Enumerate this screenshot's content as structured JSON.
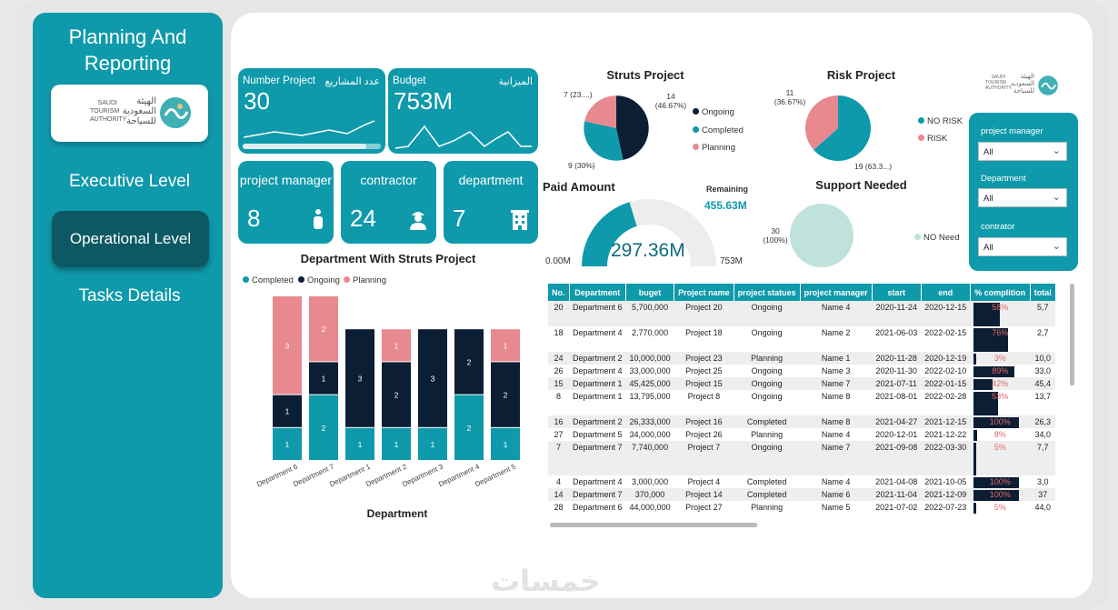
{
  "sidebar": {
    "title_line1": "Planning And",
    "title_line2": "Reporting",
    "logo": {
      "text_en_1": "SAUDI",
      "text_en_2": "TOURISM",
      "text_en_3": "AUTHORITY",
      "text_ar_1": "الهيئة",
      "text_ar_2": "السعودية",
      "text_ar_3": "للسياحة"
    },
    "nav": [
      {
        "label": "Executive Level"
      },
      {
        "label": "Operational Level"
      },
      {
        "label": "Tasks Details"
      }
    ]
  },
  "kpis": {
    "projects": {
      "label": "Number Project",
      "label_ar": "عدد المشاريع",
      "value": "30"
    },
    "budget": {
      "label": "Budget",
      "label_ar": "الميزانية",
      "value": "753M"
    },
    "manager": {
      "label": "project manager",
      "value": "8"
    },
    "contractor": {
      "label": "contractor",
      "value": "24"
    },
    "department": {
      "label": "department",
      "value": "7"
    }
  },
  "struts_pie": {
    "title": "Struts Project",
    "labels": {
      "ongoing": "14\n(46.67%)",
      "completed": "9 (30%)",
      "planning": "7 (23....)"
    },
    "legend": [
      "Ongoing",
      "Completed",
      "Planning"
    ]
  },
  "risk_pie": {
    "title": "Risk Project",
    "labels": {
      "norisk": "19 (63.3...)",
      "risk": "11\n(36.67%)"
    },
    "legend": [
      "NO RISK",
      "RISK"
    ]
  },
  "paid": {
    "title": "Paid Amount",
    "value": "297.36M",
    "remaining_label": "Remaining",
    "remaining_value": "455.63M",
    "min": "0.00M",
    "max": "753M"
  },
  "support": {
    "title": "Support Needed",
    "label": "30\n(100%)",
    "legend": "NO Need"
  },
  "filters": [
    {
      "label": "project manager",
      "value": "All"
    },
    {
      "label": "Department",
      "value": "All"
    },
    {
      "label": "contrator",
      "value": "All"
    }
  ],
  "colors": {
    "teal": "#0f9aab",
    "navy": "#0c1e33",
    "pink": "#e8898f",
    "mint": "#bfe3dc",
    "dark_teal": "#0c5964"
  },
  "chart_data": {
    "type": "bar",
    "title": "Department With Struts Project",
    "xlabel": "Department",
    "ylabel": "",
    "categories": [
      "Department 6",
      "Department 7",
      "Department 1",
      "Department 2",
      "Department 3",
      "Department 4",
      "Department 5"
    ],
    "series": [
      {
        "name": "Completed",
        "color": "#0f9aab",
        "values": [
          1,
          2,
          1,
          1,
          1,
          2,
          1
        ]
      },
      {
        "name": "Ongoing",
        "color": "#0c1e33",
        "values": [
          1,
          1,
          3,
          2,
          3,
          2,
          2
        ]
      },
      {
        "name": "Planning",
        "color": "#e8898f",
        "values": [
          3,
          2,
          0,
          1,
          0,
          0,
          1
        ]
      }
    ],
    "ylim": [
      0,
      5
    ]
  },
  "table": {
    "columns": [
      "No.",
      "Department",
      "buget",
      "Project name",
      "project statues",
      "project manager",
      "start",
      "end",
      "% complition",
      "total"
    ],
    "rows": [
      [
        "20",
        "Department 6",
        "5,700,000",
        "Project 20",
        "Ongoing",
        "Name 4",
        "2020-11-24",
        "2020-12-15",
        "58%",
        "5,7"
      ],
      [
        "18",
        "Department 4",
        "2,770,000",
        "Project 18",
        "Ongoing",
        "Name 2",
        "2021-06-03",
        "2022-02-15",
        "76%",
        "2,7"
      ],
      [
        "24",
        "Department 2",
        "10,000,000",
        "Project 23",
        "Planning",
        "Name 1",
        "2020-11-28",
        "2020-12-19",
        "3%",
        "10,0"
      ],
      [
        "26",
        "Department 4",
        "33,000,000",
        "Project 25",
        "Ongoing",
        "Name 3",
        "2020-11-30",
        "2022-02-10",
        "89%",
        "33,0"
      ],
      [
        "15",
        "Department 1",
        "45,425,000",
        "Project 15",
        "Ongoing",
        "Name 7",
        "2021-07-11",
        "2022-01-15",
        "42%",
        "45,4"
      ],
      [
        "8",
        "Department 1",
        "13,795,000",
        "Project 8",
        "Ongoing",
        "Name 8",
        "2021-08-01",
        "2022-02-28",
        "53%",
        "13,7"
      ],
      [
        "16",
        "Department 2",
        "26,333,000",
        "Project 16",
        "Completed",
        "Name 8",
        "2021-04-27",
        "2021-12-15",
        "100%",
        "26,3"
      ],
      [
        "27",
        "Department 5",
        "34,000,000",
        "Project 26",
        "Planning",
        "Name 4",
        "2020-12-01",
        "2021-12-22",
        "8%",
        "34,0"
      ],
      [
        "7",
        "Department 7",
        "7,740,000",
        "Project 7",
        "Ongoing",
        "Name 7",
        "2021-09-08",
        "2022-03-30",
        "5%",
        "7,7"
      ],
      [
        "4",
        "Department 4",
        "3,000,000",
        "Project 4",
        "Completed",
        "Name 4",
        "2021-04-08",
        "2021-10-05",
        "100%",
        "3,0"
      ],
      [
        "14",
        "Department 7",
        "370,000",
        "Project 14",
        "Completed",
        "Name 6",
        "2021-11-04",
        "2021-12-09",
        "100%",
        "37"
      ],
      [
        "28",
        "Department 6",
        "44,000,000",
        "Project 27",
        "Planning",
        "Name 5",
        "2021-07-02",
        "2022-07-23",
        "5%",
        "44,0"
      ]
    ],
    "completion_values": [
      58,
      76,
      3,
      89,
      42,
      53,
      100,
      8,
      5,
      100,
      100,
      5
    ]
  },
  "watermark": "خمسات"
}
